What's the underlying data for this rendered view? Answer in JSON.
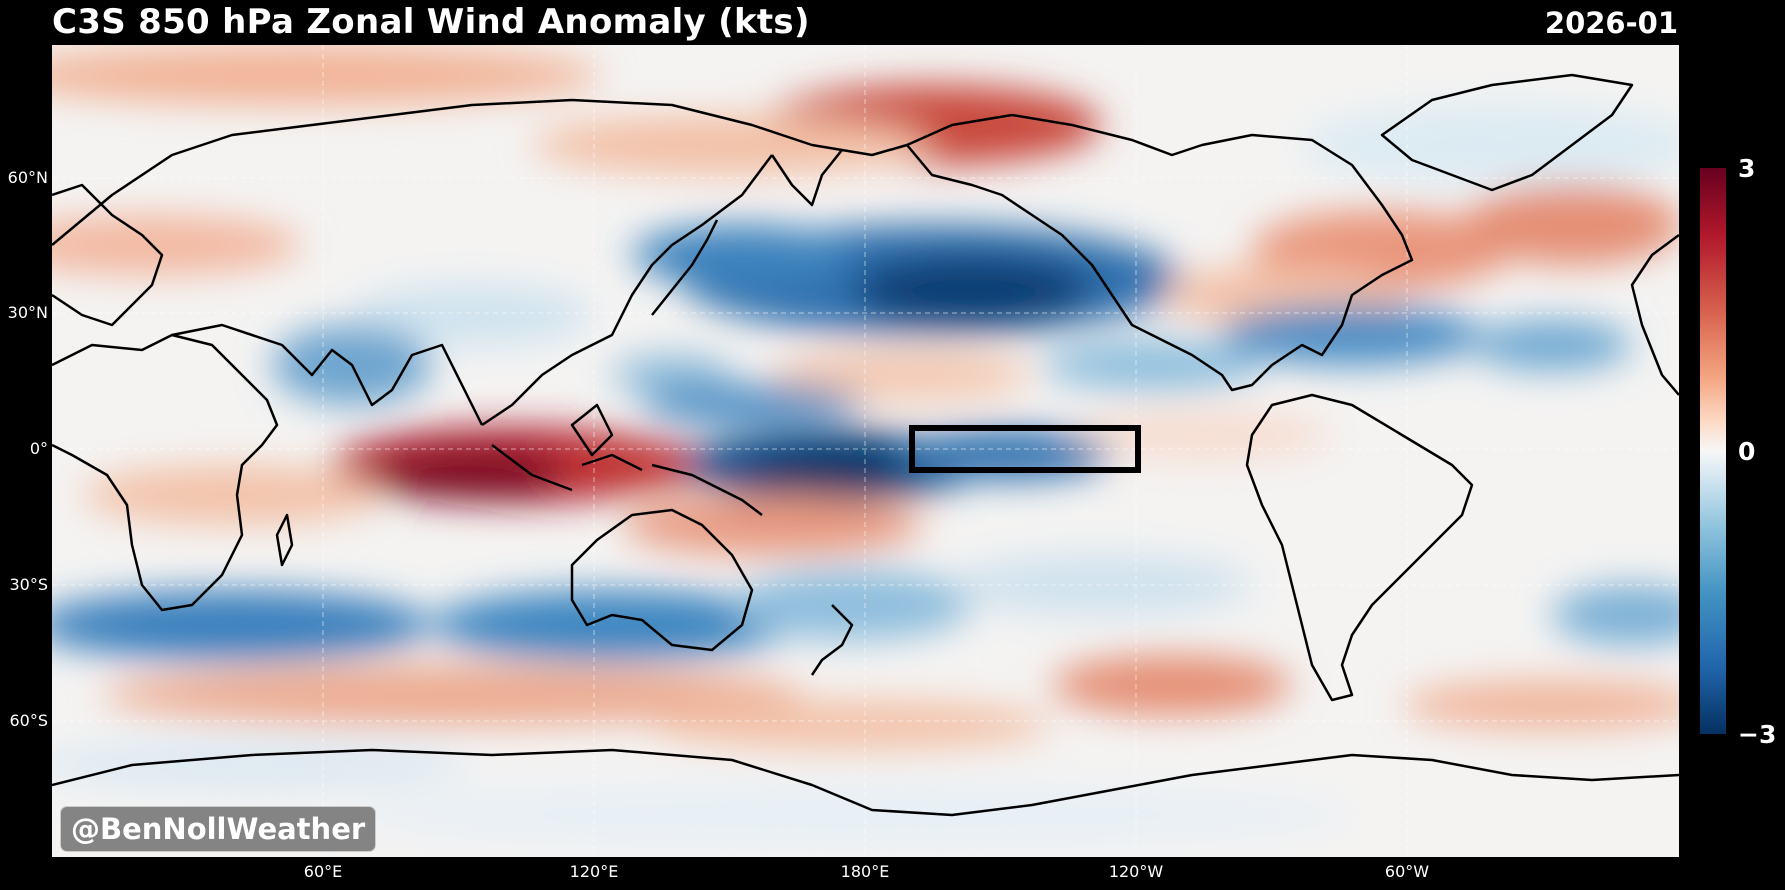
{
  "header": {
    "title": "C3S 850 hPa Zonal Wind Anomaly (kts)",
    "date": "2026-01"
  },
  "map": {
    "projection": "PlateCarree, Pacific-centered",
    "lat_labels": [
      "60°N",
      "30°N",
      "0°",
      "30°S",
      "60°S"
    ],
    "lon_labels": [
      "60°E",
      "120°E",
      "180°E",
      "120°W",
      "60°W"
    ],
    "index_box": {
      "lon_range": [
        "170°W",
        "120°W"
      ],
      "lat_range": [
        "5°S",
        "5°N"
      ]
    }
  },
  "colorbar": {
    "ticks": [
      "3",
      "0",
      "−3"
    ],
    "colormap": "RdBu_r",
    "range": [
      -3,
      3
    ],
    "colors": {
      "max": "#67001f",
      "mid": "#f7f7f7",
      "min": "#053061"
    }
  },
  "watermark": {
    "text": "@BenNollWeather"
  }
}
